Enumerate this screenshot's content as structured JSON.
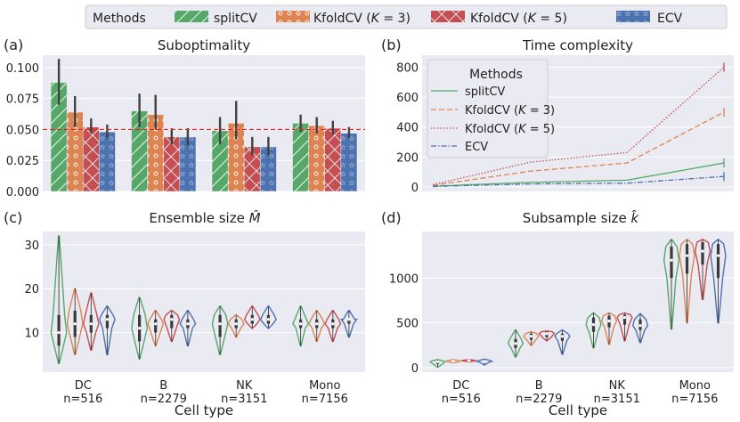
{
  "legend": {
    "title": "Methods",
    "items": [
      {
        "label": "splitCV",
        "color": "#55a868"
      },
      {
        "label": "KfoldCV (K = 3)",
        "color": "#dd8452"
      },
      {
        "label": "KfoldCV (K = 5)",
        "color": "#c44e52"
      },
      {
        "label": "ECV",
        "color": "#4c72b0"
      }
    ]
  },
  "chart_data": [
    {
      "id": "a",
      "panel_label": "(a)",
      "type": "bar",
      "title": "Suboptimality",
      "categories": [
        "DC",
        "B",
        "NK",
        "Mono"
      ],
      "ylim": [
        0,
        0.11
      ],
      "yticks": [
        0.0,
        0.025,
        0.05,
        0.075,
        0.1
      ],
      "ytick_labels": [
        "0.000",
        "0.025",
        "0.050",
        "0.075",
        "0.100"
      ],
      "reference_line": 0.05,
      "series": [
        {
          "name": "splitCV",
          "values": [
            0.088,
            0.065,
            0.049,
            0.055
          ],
          "err_low": [
            0.07,
            0.052,
            0.038,
            0.048
          ],
          "err_high": [
            0.107,
            0.079,
            0.06,
            0.062
          ]
        },
        {
          "name": "KfoldCV (K=3)",
          "values": [
            0.064,
            0.062,
            0.055,
            0.053
          ],
          "err_low": [
            0.052,
            0.05,
            0.042,
            0.047
          ],
          "err_high": [
            0.077,
            0.078,
            0.073,
            0.06
          ]
        },
        {
          "name": "KfoldCV (K=5)",
          "values": [
            0.052,
            0.044,
            0.036,
            0.051
          ],
          "err_low": [
            0.047,
            0.038,
            0.029,
            0.046
          ],
          "err_high": [
            0.059,
            0.051,
            0.044,
            0.057
          ]
        },
        {
          "name": "ECV",
          "values": [
            0.048,
            0.044,
            0.036,
            0.047
          ],
          "err_low": [
            0.043,
            0.037,
            0.029,
            0.043
          ],
          "err_high": [
            0.054,
            0.051,
            0.044,
            0.052
          ]
        }
      ]
    },
    {
      "id": "b",
      "panel_label": "(b)",
      "type": "line",
      "title": "Time complexity",
      "x": [
        0,
        1,
        2,
        3
      ],
      "ylim": [
        -30,
        880
      ],
      "yticks": [
        0,
        200,
        400,
        600,
        800
      ],
      "ytick_labels": [
        "0",
        "200",
        "400",
        "600",
        "800"
      ],
      "legend": {
        "title": "Methods",
        "items": [
          "splitCV",
          "KfoldCV (K=3)",
          "KfoldCV (K=5)",
          "ECV"
        ]
      },
      "series": [
        {
          "name": "splitCV",
          "values": [
            5,
            30,
            45,
            160
          ]
        },
        {
          "name": "KfoldCV (K=3)",
          "values": [
            10,
            105,
            160,
            500
          ]
        },
        {
          "name": "KfoldCV (K=5)",
          "values": [
            15,
            165,
            230,
            800
          ]
        },
        {
          "name": "ECV",
          "values": [
            3,
            20,
            25,
            70
          ]
        }
      ]
    },
    {
      "id": "c",
      "panel_label": "(c)",
      "type": "violin",
      "title": "Ensemble size M̂",
      "xlabel": "Cell type",
      "categories": [
        "DC",
        "B",
        "NK",
        "Mono"
      ],
      "category_counts": [
        "n=516",
        "n=2279",
        "n=3151",
        "n=7156"
      ],
      "ylim": [
        1,
        33
      ],
      "yticks": [
        10,
        20,
        30
      ],
      "ytick_labels": [
        "10",
        "20",
        "30"
      ],
      "series": [
        {
          "name": "splitCV",
          "min": [
            3,
            4,
            5,
            7
          ],
          "q1": [
            7,
            8,
            9,
            11
          ],
          "median": [
            10,
            11,
            12,
            12
          ],
          "q3": [
            14,
            14,
            14,
            13
          ],
          "max": [
            32,
            18,
            16,
            16
          ]
        },
        {
          "name": "KfoldCV (K=3)",
          "min": [
            5,
            7,
            9,
            8
          ],
          "q1": [
            9,
            10,
            11,
            11
          ],
          "median": [
            12,
            12,
            12,
            12
          ],
          "q3": [
            15,
            13,
            13,
            13
          ],
          "max": [
            20,
            15,
            14,
            15
          ]
        },
        {
          "name": "KfoldCV (K=5)",
          "min": [
            6,
            8,
            11,
            8
          ],
          "q1": [
            10,
            11,
            12,
            11
          ],
          "median": [
            12,
            13,
            13,
            12
          ],
          "q3": [
            14,
            14,
            14,
            13
          ],
          "max": [
            19,
            15,
            16,
            15
          ]
        },
        {
          "name": "ECV",
          "min": [
            5,
            7,
            11,
            9
          ],
          "q1": [
            11,
            11,
            12,
            12
          ],
          "median": [
            13,
            12,
            13,
            13
          ],
          "q3": [
            14,
            13,
            14,
            13
          ],
          "max": [
            16,
            15,
            16,
            15
          ]
        }
      ]
    },
    {
      "id": "d",
      "panel_label": "(d)",
      "type": "violin",
      "title": "Subsample size k̂",
      "xlabel": "Cell type",
      "categories": [
        "DC",
        "B",
        "NK",
        "Mono"
      ],
      "category_counts": [
        "n=516",
        "n=2279",
        "n=3151",
        "n=7156"
      ],
      "ylim": [
        -50,
        1520
      ],
      "yticks": [
        0,
        500,
        1000
      ],
      "ytick_labels": [
        "0",
        "500",
        "1000"
      ],
      "series": [
        {
          "name": "splitCV",
          "min": [
            5,
            120,
            220,
            430
          ],
          "q1": [
            40,
            220,
            400,
            1000
          ],
          "median": [
            65,
            270,
            480,
            1200
          ],
          "q3": [
            75,
            320,
            560,
            1350
          ],
          "max": [
            90,
            420,
            610,
            1430
          ]
        },
        {
          "name": "KfoldCV (K=3)",
          "min": [
            55,
            250,
            260,
            500
          ],
          "q1": [
            65,
            310,
            450,
            1050
          ],
          "median": [
            72,
            350,
            520,
            1250
          ],
          "q3": [
            78,
            380,
            580,
            1380
          ],
          "max": [
            90,
            400,
            610,
            1430
          ]
        },
        {
          "name": "KfoldCV (K=5)",
          "min": [
            65,
            300,
            300,
            760
          ],
          "q1": [
            72,
            340,
            480,
            1150
          ],
          "median": [
            78,
            380,
            560,
            1300
          ],
          "q3": [
            82,
            400,
            590,
            1400
          ],
          "max": [
            90,
            410,
            610,
            1430
          ]
        },
        {
          "name": "ECV",
          "min": [
            30,
            150,
            280,
            500
          ],
          "q1": [
            60,
            300,
            420,
            1000
          ],
          "median": [
            70,
            350,
            470,
            1250
          ],
          "q3": [
            80,
            380,
            540,
            1380
          ],
          "max": [
            95,
            420,
            600,
            1430
          ]
        }
      ]
    }
  ]
}
